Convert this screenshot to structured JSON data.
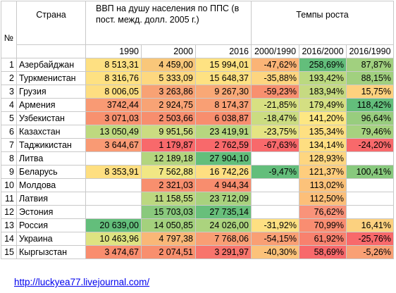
{
  "header": {
    "num": "№",
    "country": "Страна",
    "gdp": "ВВП на душу населения по ППС (в пост. межд. долл. 2005 г.)",
    "growth": "Темпы роста",
    "years": [
      "1990",
      "2000",
      "2016"
    ],
    "periods": [
      "2000/1990",
      "2016/2000",
      "2016/1990"
    ]
  },
  "rows": [
    {
      "n": "1",
      "country": "Азербайджан",
      "v1990": "8 513,31",
      "v2000": "4 459,00",
      "v2016": "15 994,01",
      "g1": "-47,62%",
      "g2": "258,69%",
      "g3": "87,87%"
    },
    {
      "n": "2",
      "country": "Туркменистан",
      "v1990": "8 316,76",
      "v2000": "5 333,09",
      "v2016": "15 648,37",
      "g1": "-35,88%",
      "g2": "193,42%",
      "g3": "88,15%"
    },
    {
      "n": "3",
      "country": "Грузия",
      "v1990": "8 006,05",
      "v2000": "3 263,86",
      "v2016": "9 267,30",
      "g1": "-59,23%",
      "g2": "183,94%",
      "g3": "15,75%"
    },
    {
      "n": "4",
      "country": "Армения",
      "v1990": "3742,44",
      "v2000": "2 924,75",
      "v2016": "8 174,37",
      "g1": "-21,85%",
      "g2": "179,49%",
      "g3": "118,42%"
    },
    {
      "n": "5",
      "country": "Узбекистан",
      "v1990": "3 071,03",
      "v2000": "2 503,66",
      "v2016": "6 038,87",
      "g1": "-18,47%",
      "g2": "141,20%",
      "g3": "96,64%"
    },
    {
      "n": "6",
      "country": "Казахстан",
      "v1990": "13 050,49",
      "v2000": "9 951,56",
      "v2016": "23 419,91",
      "g1": "-23,75%",
      "g2": "135,34%",
      "g3": "79,46%"
    },
    {
      "n": "7",
      "country": "Таджикистан",
      "v1990": "3 644,67",
      "v2000": "1 179,87",
      "v2016": "2 762,59",
      "g1": "-67,63%",
      "g2": "134,14%",
      "g3": "-24,20%"
    },
    {
      "n": "8",
      "country": "Литва",
      "v1990": "",
      "v2000": "12 189,18",
      "v2016": "27 904,10",
      "g1": "",
      "g2": "128,93%",
      "g3": ""
    },
    {
      "n": "9",
      "country": "Беларусь",
      "v1990": "8 353,91",
      "v2000": "7 562,88",
      "v2016": "16 742,26",
      "g1": "-9,47%",
      "g2": "121,37%",
      "g3": "100,41%"
    },
    {
      "n": "10",
      "country": "Молдова",
      "v1990": "",
      "v2000": "2 321,03",
      "v2016": "4 944,34",
      "g1": "",
      "g2": "113,02%",
      "g3": ""
    },
    {
      "n": "11",
      "country": "Латвия",
      "v1990": "",
      "v2000": "11 158,55",
      "v2016": "23 712,09",
      "g1": "",
      "g2": "112,50%",
      "g3": ""
    },
    {
      "n": "12",
      "country": "Эстония",
      "v1990": "",
      "v2000": "15 703,03",
      "v2016": "27 735,14",
      "g1": "",
      "g2": "76,62%",
      "g3": ""
    },
    {
      "n": "13",
      "country": "Россия",
      "v1990": "20 639,00",
      "v2000": "14 050,85",
      "v2016": "24 026,00",
      "g1": "-31,92%",
      "g2": "70,99%",
      "g3": "16,41%"
    },
    {
      "n": "14",
      "country": "Украина",
      "v1990": "10 463,96",
      "v2000": "4 797,38",
      "v2016": "7 768,06",
      "g1": "-54,15%",
      "g2": "61,92%",
      "g3": "-25,76%"
    },
    {
      "n": "15",
      "country": "Кыргызстан",
      "v1990": "3 474,67",
      "v2000": "2 074,51",
      "v2016": "3 291,97",
      "g1": "-40,30%",
      "g2": "58,69%",
      "g3": "-5,26%"
    }
  ],
  "colors": {
    "v1990": [
      "#fee082",
      "#fee182",
      "#fede81",
      "#f99a74",
      "#f8916f",
      "#bed97f",
      "#f99a74",
      "",
      "#fedf81",
      "",
      "",
      "",
      "#63be7b",
      "#dee381",
      "#f98d6e"
    ],
    "v2000": [
      "#f9c77a",
      "#fdd880",
      "#f8a274",
      "#f8a375",
      "#f78e6e",
      "#cbdc81",
      "#f8696b",
      "#b3d57e",
      "#f1e784",
      "#f88f6e",
      "#bcd880",
      "#8ac97d",
      "#a4d17d",
      "#f9b777",
      "#f88f6e"
    ],
    "v2016": [
      "#fee282",
      "#fee182",
      "#f9a876",
      "#f99f74",
      "#f88e6e",
      "#b6d77f",
      "#f8696b",
      "#63be7b",
      "#fedf81",
      "#f88d6e",
      "#a8d27e",
      "#68bf7b",
      "#abd37e",
      "#f99e74",
      "#f8746c"
    ],
    "g1": [
      "#fbb476",
      "#fdd580",
      "#f8906f",
      "#d8e082",
      "#cbdc81",
      "#e5e483",
      "#f8696b",
      "",
      "#63be7b",
      "",
      "",
      "",
      "#fee082",
      "#f99f74",
      "#fcc27a"
    ],
    "g2": [
      "#63be7b",
      "#bbd980",
      "#c6da81",
      "#d4df82",
      "#fde783",
      "#fee082",
      "#fede81",
      "#fed680",
      "#fecd7d",
      "#fcc27a",
      "#fcbf79",
      "#f9937a",
      "#f98d71",
      "#f8816e",
      "#f8696b"
    ],
    "g3": [
      "#a1d07f",
      "#a1d07f",
      "#fdd17e",
      "#63be7b",
      "#98cd7e",
      "#a6d27f",
      "#f8696b",
      "",
      "#88c97d",
      "",
      "",
      "",
      "#fcd17f",
      "#f8696b",
      "#f9a074"
    ]
  },
  "footer": {
    "link_text": "http://luckyea77.livejournal.com/"
  }
}
